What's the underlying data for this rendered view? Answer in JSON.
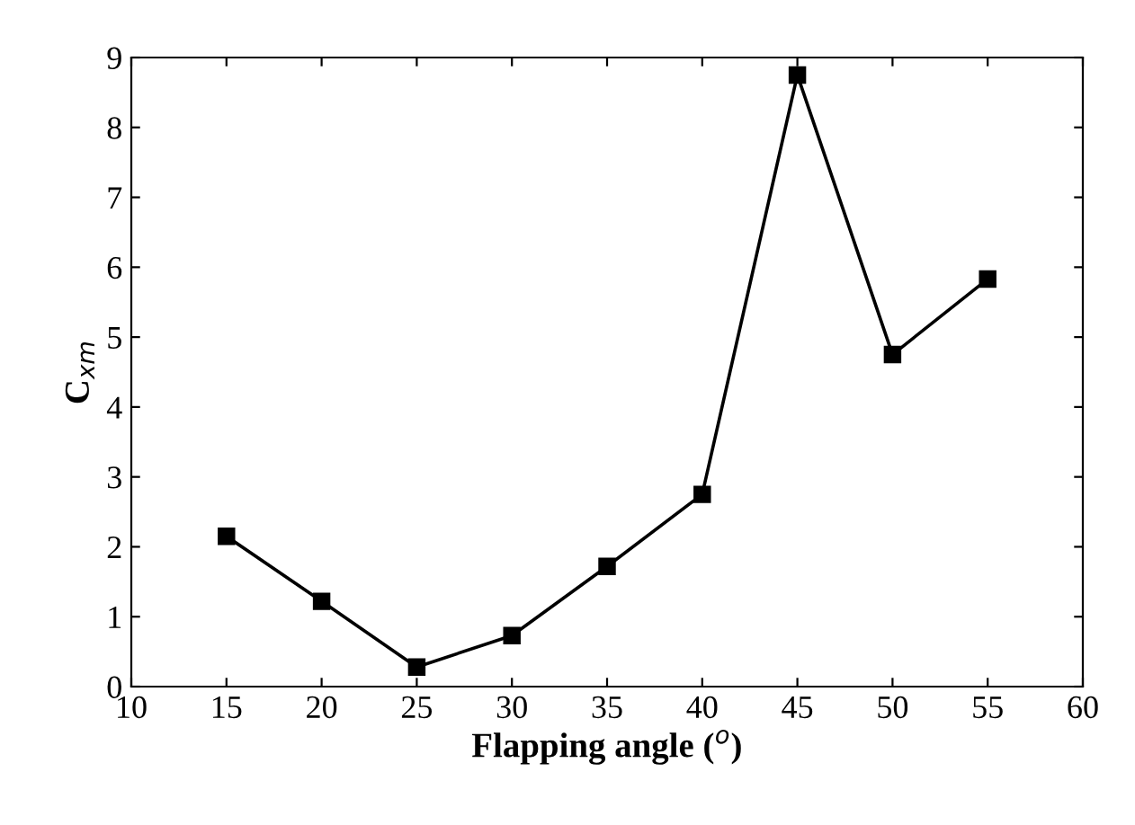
{
  "chart_data": {
    "type": "line",
    "xlabel": "Flapping angle ($^{o}$)",
    "ylabel": "C$_{xm}$",
    "x": [
      15,
      20,
      25,
      30,
      35,
      40,
      45,
      50,
      55
    ],
    "series": [
      {
        "color": "#000000",
        "values": [
          2.15,
          1.22,
          0.28,
          0.73,
          1.72,
          2.75,
          8.75,
          4.75,
          5.83
        ]
      }
    ],
    "xlim": [
      10,
      60
    ],
    "xticks": [
      10,
      15,
      20,
      25,
      30,
      35,
      40,
      45,
      50,
      55,
      60
    ],
    "ylim": [
      0,
      9
    ],
    "yticks": [
      0,
      1,
      2,
      3,
      4,
      5,
      6,
      7,
      8,
      9
    ],
    "marker": "square",
    "line_style": "solid",
    "grid": false,
    "legend": false
  }
}
